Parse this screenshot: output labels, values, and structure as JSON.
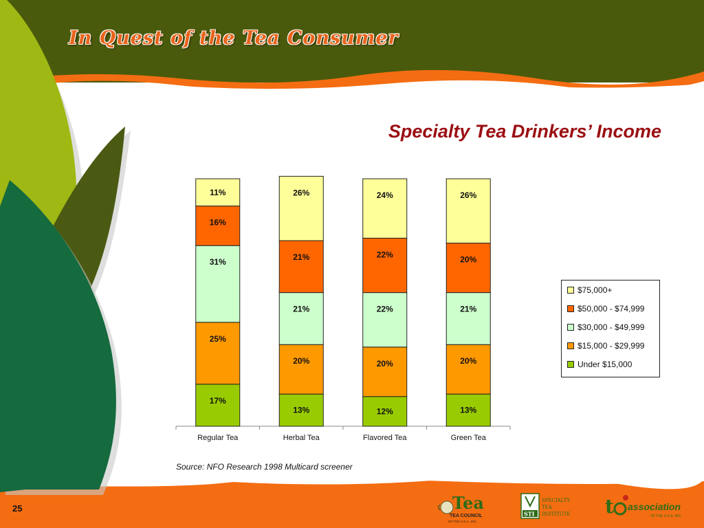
{
  "header": {
    "title": "In Quest of the Tea Consumer"
  },
  "slide": {
    "page_number": "25",
    "source": "Source: NFO Research 1998 Multicard screener"
  },
  "colors": {
    "header_bg": "#4a5a0c",
    "footer_bg": "#f46d12",
    "title_red": "#9b0f12",
    "leaf_light": "#a0b814",
    "leaf_olive": "#4a5a12",
    "leaf_dark": "#156a3e"
  },
  "logos": {
    "tea_council": {
      "word": "Tea",
      "line1": "TEA COUNCIL",
      "line2": "OF THE U.S.A., INC."
    },
    "sti": {
      "letters": "STI",
      "line1": "SPECIALTY",
      "line2": "TEA",
      "line3": "INSTITUTE"
    },
    "tea_association": {
      "word": "association",
      "line2": "OF THE U.S.A. INC."
    }
  },
  "chart_data": {
    "type": "bar",
    "stacked": "percent",
    "title": "Specialty Tea Drinkers’ Income",
    "categories": [
      "Regular Tea",
      "Herbal Tea",
      "Flavored Tea",
      "Green Tea"
    ],
    "series": [
      {
        "name": "Under $15,000",
        "color": "#99cc00",
        "values": [
          17,
          13,
          12,
          13
        ],
        "labels": [
          "17%",
          "13%",
          "12%",
          "13%"
        ]
      },
      {
        "name": "$15,000 - $29,999",
        "color": "#ff9900",
        "values": [
          25,
          20,
          20,
          20
        ],
        "labels": [
          "25%",
          "20%",
          "20%",
          "20%"
        ]
      },
      {
        "name": "$30,000 - $49,999",
        "color": "#ccffcc",
        "values": [
          31,
          21,
          22,
          21
        ],
        "labels": [
          "31%",
          "21%",
          "22%",
          "21%"
        ]
      },
      {
        "name": "$50,000 - $74,999",
        "color": "#ff6600",
        "values": [
          16,
          21,
          22,
          20
        ],
        "labels": [
          "16%",
          "21%",
          "22%",
          "20%"
        ]
      },
      {
        "name": "$75,000+",
        "color": "#ffff99",
        "values": [
          11,
          26,
          24,
          26
        ],
        "labels": [
          "11%",
          "26%",
          "24%",
          "26%"
        ]
      }
    ],
    "legend_order": [
      "$75,000+",
      "$50,000 - $74,999",
      "$30,000 - $49,999",
      "$15,000 - $29,999",
      "Under $15,000"
    ],
    "legend_position": "right",
    "grid": false,
    "ylim": [
      0,
      100
    ]
  }
}
